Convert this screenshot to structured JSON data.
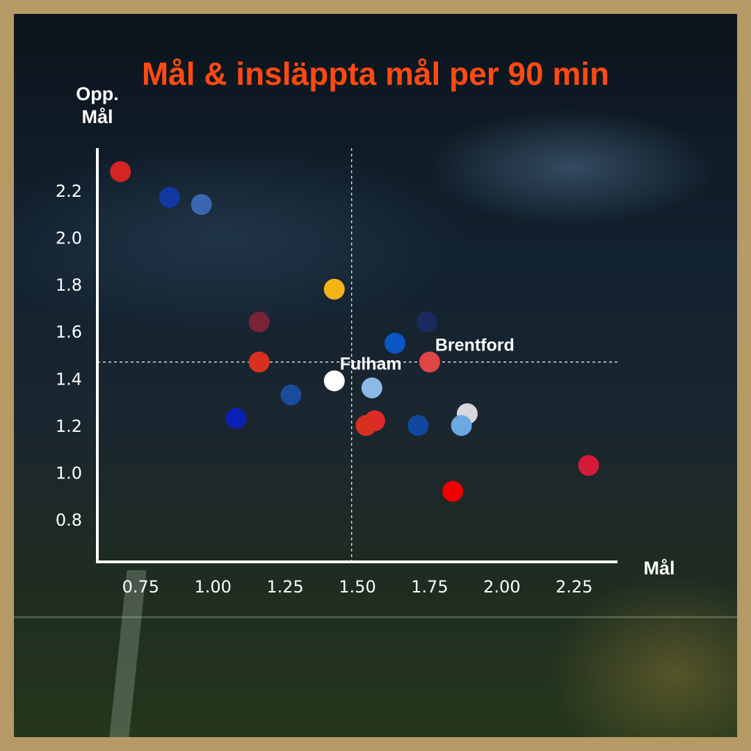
{
  "chart_data": {
    "type": "scatter",
    "title": "Mål & insläppta mål per 90 min",
    "xlabel": "Mål",
    "ylabel_line1": "Opp.",
    "ylabel_line2": "Mål",
    "xlim": [
      0.6,
      2.4
    ],
    "ylim": [
      0.62,
      2.38
    ],
    "x_ticks": [
      "0.75",
      "1.00",
      "1.25",
      "1.50",
      "1.75",
      "2.00",
      "2.25"
    ],
    "x_tick_values": [
      0.75,
      1.0,
      1.25,
      1.5,
      1.75,
      2.0,
      2.25
    ],
    "y_ticks": [
      "2.2",
      "2.0",
      "1.8",
      "1.6",
      "1.4",
      "1.2",
      "1.0",
      "0.8"
    ],
    "y_tick_values": [
      2.2,
      2.0,
      1.8,
      1.6,
      1.4,
      1.2,
      1.0,
      0.8
    ],
    "reference_lines": {
      "x": 1.48,
      "y": 1.47
    },
    "points": [
      {
        "x": 0.68,
        "y": 2.28,
        "color": "#d42424",
        "label": ""
      },
      {
        "x": 0.85,
        "y": 2.17,
        "color": "#1239a0",
        "label": ""
      },
      {
        "x": 0.96,
        "y": 2.14,
        "color": "#3a66b4",
        "label": ""
      },
      {
        "x": 1.42,
        "y": 1.78,
        "color": "#f5b415",
        "label": ""
      },
      {
        "x": 1.16,
        "y": 1.64,
        "color": "#7a2237",
        "label": ""
      },
      {
        "x": 1.16,
        "y": 1.47,
        "color": "#d8301f",
        "label": ""
      },
      {
        "x": 1.63,
        "y": 1.55,
        "color": "#0a56c4",
        "label": ""
      },
      {
        "x": 1.74,
        "y": 1.64,
        "color": "#1b2a5e",
        "label": ""
      },
      {
        "x": 1.75,
        "y": 1.47,
        "color": "#e04646",
        "label": "Brentford"
      },
      {
        "x": 1.42,
        "y": 1.39,
        "color": "#ffffff",
        "label": "Fulham"
      },
      {
        "x": 1.55,
        "y": 1.36,
        "color": "#8cbae8",
        "label": ""
      },
      {
        "x": 1.27,
        "y": 1.33,
        "color": "#1d4b9c",
        "label": ""
      },
      {
        "x": 1.08,
        "y": 1.23,
        "color": "#0a20b4",
        "label": ""
      },
      {
        "x": 1.56,
        "y": 1.22,
        "color": "#e02828",
        "label": ""
      },
      {
        "x": 1.53,
        "y": 1.2,
        "color": "#d83020",
        "label": ""
      },
      {
        "x": 1.71,
        "y": 1.2,
        "color": "#1048a0",
        "label": ""
      },
      {
        "x": 1.88,
        "y": 1.25,
        "color": "#d8d8dc",
        "label": ""
      },
      {
        "x": 1.86,
        "y": 1.2,
        "color": "#6ca8e4",
        "label": ""
      },
      {
        "x": 2.3,
        "y": 1.03,
        "color": "#d41c3a",
        "label": ""
      },
      {
        "x": 1.83,
        "y": 0.92,
        "color": "#f00000",
        "label": ""
      }
    ],
    "grid": false
  }
}
